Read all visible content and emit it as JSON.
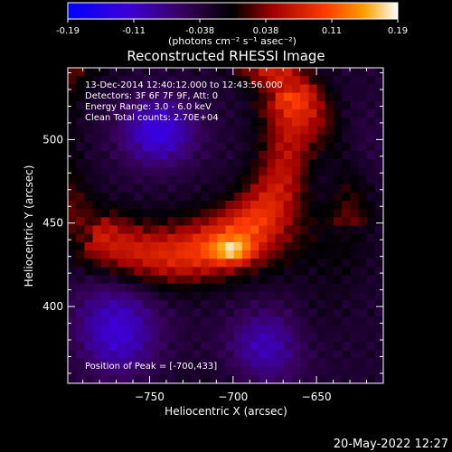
{
  "chart_data": {
    "type": "heatmap",
    "title": "Reconstructed RHESSI Image",
    "colorbar": {
      "ticks": [
        "-0.19",
        "-0.11",
        "-0.038",
        "0.038",
        "0.11",
        "0.19"
      ],
      "range": [
        -0.19,
        0.19
      ],
      "units_line": "(photons cm⁻² s⁻¹ asec⁻²)",
      "colormap": [
        "#0000ff",
        "#5a00c0",
        "#000000",
        "#a00000",
        "#ff4000",
        "#ffb000",
        "#ffffff"
      ]
    },
    "info_lines": [
      "13-Dec-2014 12:40:12.000 to 12:43:56.000",
      "Detectors: 3F 6F 7F 9F, Att: 0",
      "Energy Range: 3.0 - 6.0 keV",
      "Clean     Total counts: 2.70E+04"
    ],
    "peak_text": "Position of Peak = [-700,433]",
    "xlabel": "Heliocentric X (arcsec)",
    "ylabel": "Heliocentric Y (arcsec)",
    "xlim": [
      -799,
      -610
    ],
    "ylim": [
      354,
      543
    ],
    "xticks": [
      -750,
      -700,
      -650
    ],
    "xtick_labels": [
      "−750",
      "−700",
      "−650"
    ],
    "yticks": [
      400,
      450,
      500
    ],
    "yticks_labels": [
      "400",
      "450",
      "500"
    ],
    "peak": {
      "x": -700,
      "y": 433
    },
    "grid": false
  },
  "footer": {
    "timestamp": "20-May-2022 12:27"
  }
}
